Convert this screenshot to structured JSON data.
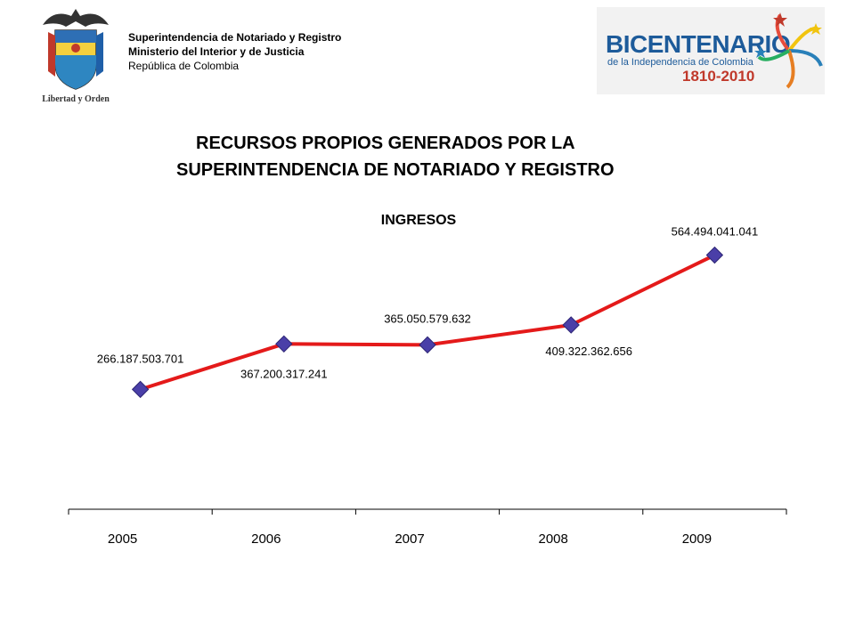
{
  "header": {
    "org_lines": [
      "Superintendencia de Notariado y Registro",
      "Ministerio del Interior y de Justicia",
      "República de Colombia"
    ],
    "motto": "Libertad y Orden",
    "bicentenario": {
      "title": "BICENTENARIO",
      "subtitle": "de la Independencia de Colombia",
      "years": "1810-2010"
    }
  },
  "main": {
    "title_line1": "RECURSOS PROPIOS GENERADOS POR LA",
    "title_line2": "SUPERINTENDENCIA DE NOTARIADO Y REGISTRO"
  },
  "colors": {
    "line": "#e41a1a",
    "marker": "#4a3fa8",
    "brand_blue": "#1d5b9a",
    "brand_red": "#c0392b"
  },
  "chart_data": {
    "type": "line",
    "title": "INGRESOS",
    "categories": [
      "2005",
      "2006",
      "2007",
      "2008",
      "2009"
    ],
    "values": [
      266187503701,
      367200317241,
      365050579632,
      409322362656,
      564494041041
    ],
    "data_labels": [
      "266.187.503.701",
      "367.200.317.241",
      "365.050.579.632",
      "409.322.362.656",
      "564.494.041.041"
    ],
    "xlabel": "",
    "ylabel": "",
    "ylim": [
      0,
      700000000000
    ],
    "grid": false,
    "legend": "none",
    "marker": "diamond"
  }
}
